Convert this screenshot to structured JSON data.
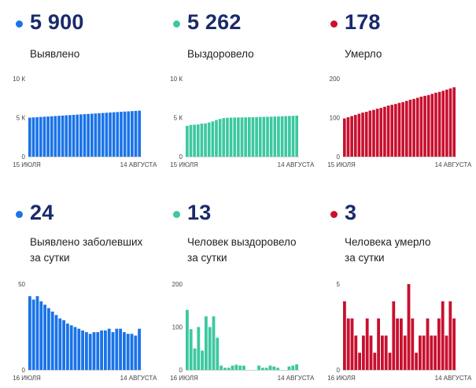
{
  "colors": {
    "blue": "#1a73e8",
    "green": "#3cc8a0",
    "red": "#c8102e",
    "number": "#1a2a6c"
  },
  "panels": [
    {
      "number": "5 900",
      "label1": "Выявлено",
      "label2": ""
    },
    {
      "number": "5 262",
      "label1": "Выздоровело",
      "label2": ""
    },
    {
      "number": "178",
      "label1": "Умерло",
      "label2": ""
    },
    {
      "number": "24",
      "label1": "Выявлено заболевших",
      "label2": "за сутки"
    },
    {
      "number": "13",
      "label1": "Человек выздоровело",
      "label2": "за сутки"
    },
    {
      "number": "3",
      "label1": "Человека умерло",
      "label2": "за сутки"
    }
  ],
  "chart_data": [
    {
      "type": "bar",
      "color": "blue",
      "ylim": [
        0,
        10000
      ],
      "yticks": [
        {
          "value": 0,
          "label": "0"
        },
        {
          "value": 5000,
          "label": "5 К"
        },
        {
          "value": 10000,
          "label": "10 К"
        }
      ],
      "xstart": "15 ИЮЛЯ",
      "xend": "14 АВГУСТА",
      "values": [
        5000,
        5030,
        5060,
        5090,
        5120,
        5150,
        5180,
        5210,
        5240,
        5270,
        5300,
        5330,
        5360,
        5390,
        5420,
        5450,
        5480,
        5510,
        5540,
        5570,
        5600,
        5630,
        5660,
        5690,
        5720,
        5750,
        5780,
        5810,
        5840,
        5870,
        5900
      ]
    },
    {
      "type": "bar",
      "color": "green",
      "ylim": [
        0,
        10000
      ],
      "yticks": [
        {
          "value": 0,
          "label": "0"
        },
        {
          "value": 5000,
          "label": "5 К"
        },
        {
          "value": 10000,
          "label": "10 К"
        }
      ],
      "xstart": "15 ИЮЛЯ",
      "xend": "14 АВГУСТА",
      "values": [
        3950,
        4070,
        4100,
        4130,
        4230,
        4260,
        4380,
        4520,
        4700,
        4830,
        4940,
        4980,
        5000,
        5010,
        5020,
        5030,
        5040,
        5050,
        5060,
        5070,
        5090,
        5100,
        5110,
        5120,
        5140,
        5160,
        5180,
        5200,
        5220,
        5240,
        5262
      ]
    },
    {
      "type": "bar",
      "color": "red",
      "ylim": [
        0,
        200
      ],
      "yticks": [
        {
          "value": 0,
          "label": "0"
        },
        {
          "value": 100,
          "label": "100"
        },
        {
          "value": 200,
          "label": "200"
        }
      ],
      "xstart": "15 ИЮЛЯ",
      "xend": "14 АВГУСТА",
      "values": [
        98,
        101,
        104,
        107,
        110,
        113,
        115,
        118,
        120,
        123,
        125,
        128,
        131,
        133,
        135,
        138,
        140,
        143,
        146,
        148,
        151,
        154,
        156,
        158,
        161,
        164,
        166,
        169,
        172,
        175,
        178
      ]
    },
    {
      "type": "bar",
      "color": "blue",
      "ylim": [
        0,
        50
      ],
      "yticks": [
        {
          "value": 0,
          "label": "0"
        },
        {
          "value": 50,
          "label": "50"
        }
      ],
      "xstart": "16 ИЮЛЯ",
      "xend": "14 АВГУСТА",
      "values": [
        43,
        41,
        43,
        40,
        38,
        36,
        34,
        32,
        30,
        29,
        27,
        26,
        25,
        24,
        23,
        22,
        21,
        22,
        22,
        23,
        23,
        24,
        22,
        24,
        24,
        22,
        21,
        21,
        20,
        24
      ]
    },
    {
      "type": "bar",
      "color": "green",
      "ylim": [
        0,
        200
      ],
      "yticks": [
        {
          "value": 0,
          "label": "0"
        },
        {
          "value": 100,
          "label": "100"
        },
        {
          "value": 200,
          "label": "200"
        }
      ],
      "xstart": "16 ИЮЛЯ",
      "xend": "14 АВГУСТА",
      "values": [
        140,
        95,
        50,
        100,
        45,
        125,
        100,
        125,
        75,
        10,
        5,
        5,
        10,
        12,
        10,
        10,
        0,
        0,
        0,
        10,
        5,
        5,
        10,
        8,
        5,
        0,
        0,
        8,
        10,
        13
      ]
    },
    {
      "type": "bar",
      "color": "red",
      "ylim": [
        0,
        5
      ],
      "yticks": [
        {
          "value": 0,
          "label": "0"
        },
        {
          "value": 5,
          "label": "5"
        }
      ],
      "xstart": "16 ИЮЛЯ",
      "xend": "14 АВГУСТА",
      "values": [
        4,
        3,
        3,
        2,
        1,
        2,
        3,
        2,
        1,
        3,
        2,
        2,
        1,
        4,
        3,
        3,
        2,
        5,
        3,
        1,
        2,
        2,
        3,
        2,
        2,
        3,
        4,
        2,
        4,
        3
      ]
    }
  ]
}
